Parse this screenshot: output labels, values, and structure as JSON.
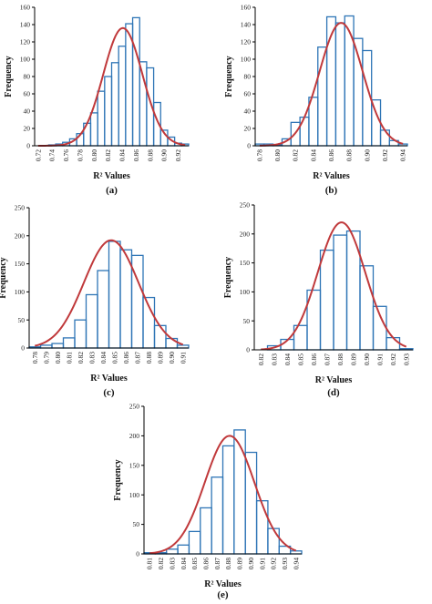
{
  "figure": {
    "panel_labels": [
      "(a)",
      "(b)",
      "(c)",
      "(d)",
      "(e)"
    ]
  },
  "colors": {
    "bar_stroke": "#2e75b6",
    "fit_curve": "#c0393b",
    "axis": "#000000"
  },
  "chart_data": [
    {
      "type": "bar",
      "panel": "(a)",
      "xlabel": "R² Values",
      "ylabel": "Frequency",
      "ylim": [
        0,
        160
      ],
      "yticks": [
        0,
        20,
        40,
        60,
        80,
        100,
        120,
        140,
        160
      ],
      "categories": [
        "0.72",
        "0.73",
        "0.74",
        "0.75",
        "0.76",
        "0.77",
        "0.78",
        "0.79",
        "0.80",
        "0.81",
        "0.82",
        "0.83",
        "0.84",
        "0.85",
        "0.86",
        "0.87",
        "0.88",
        "0.89",
        "0.90",
        "0.91",
        "0.92",
        "0.93"
      ],
      "xtick_labels": [
        "0.72",
        "0.74",
        "0.76",
        "0.78",
        "0.80",
        "0.82",
        "0.84",
        "0.86",
        "0.88",
        "0.90",
        "0.92"
      ],
      "values": [
        0,
        0,
        1,
        2,
        4,
        8,
        14,
        26,
        38,
        63,
        80,
        96,
        115,
        141,
        148,
        97,
        90,
        50,
        18,
        10,
        3,
        2
      ],
      "fit_curve": {
        "mean": 0.841,
        "sd": 0.028,
        "peak": 136
      },
      "grid": false
    },
    {
      "type": "bar",
      "panel": "(b)",
      "xlabel": "R² Values",
      "ylabel": "Frequency",
      "ylim": [
        0,
        160
      ],
      "yticks": [
        0,
        20,
        40,
        60,
        80,
        100,
        120,
        140,
        160
      ],
      "categories": [
        "0.78",
        "0.79",
        "0.80",
        "0.81",
        "0.82",
        "0.83",
        "0.84",
        "0.85",
        "0.86",
        "0.87",
        "0.88",
        "0.89",
        "0.90",
        "0.91",
        "0.92",
        "0.93",
        "0.94"
      ],
      "xtick_labels": [
        "0.78",
        "0.80",
        "0.82",
        "0.84",
        "0.86",
        "0.88",
        "0.90",
        "0.92",
        "0.94"
      ],
      "values": [
        2,
        2,
        1,
        8,
        27,
        33,
        56,
        114,
        149,
        142,
        150,
        124,
        110,
        53,
        18,
        6,
        2
      ],
      "fit_curve": {
        "mean": 0.871,
        "sd": 0.024,
        "peak": 142
      },
      "grid": false
    },
    {
      "type": "bar",
      "panel": "(c)",
      "xlabel": "R² Values",
      "ylabel": "Frequency",
      "ylim": [
        0,
        250
      ],
      "yticks": [
        0,
        50,
        100,
        150,
        200,
        250
      ],
      "categories": [
        "0.78",
        "0.79",
        "0.80",
        "0.81",
        "0.82",
        "0.83",
        "0.84",
        "0.85",
        "0.86",
        "0.87",
        "0.88",
        "0.89",
        "0.90",
        "0.91"
      ],
      "xtick_labels": [
        "0.78",
        "0.79",
        "0.80",
        "0.81",
        "0.82",
        "0.83",
        "0.84",
        "0.85",
        "0.86",
        "0.87",
        "0.88",
        "0.89",
        "0.90",
        "0.91"
      ],
      "values": [
        2,
        5,
        8,
        18,
        50,
        95,
        138,
        190,
        175,
        165,
        90,
        40,
        17,
        5
      ],
      "fit_curve": {
        "mean": 0.847,
        "sd": 0.024,
        "peak": 192
      },
      "grid": false
    },
    {
      "type": "bar",
      "panel": "(d)",
      "xlabel": "R² Values",
      "ylabel": "Frequency",
      "ylim": [
        0,
        250
      ],
      "yticks": [
        0,
        50,
        100,
        150,
        200,
        250
      ],
      "categories": [
        "0.82",
        "0.83",
        "0.84",
        "0.85",
        "0.86",
        "0.87",
        "0.88",
        "0.89",
        "0.90",
        "0.91",
        "0.92",
        "0.93"
      ],
      "xtick_labels": [
        "0.82",
        "0.83",
        "0.84",
        "0.85",
        "0.86",
        "0.87",
        "0.88",
        "0.89",
        "0.90",
        "0.91",
        "0.92",
        "0.93"
      ],
      "values": [
        0,
        7,
        18,
        42,
        103,
        172,
        198,
        205,
        145,
        75,
        21,
        2
      ],
      "fit_curve": {
        "mean": 0.881,
        "sd": 0.018,
        "peak": 220
      },
      "grid": false
    },
    {
      "type": "bar",
      "panel": "(e)",
      "xlabel": "R² Values",
      "ylabel": "Frequency",
      "ylim": [
        0,
        250
      ],
      "yticks": [
        0,
        50,
        100,
        150,
        200,
        250
      ],
      "categories": [
        "0.81",
        "0.82",
        "0.83",
        "0.84",
        "0.85",
        "0.86",
        "0.87",
        "0.88",
        "0.89",
        "0.90",
        "0.91",
        "0.92",
        "0.93",
        "0.94"
      ],
      "xtick_labels": [
        "0.81",
        "0.82",
        "0.83",
        "0.84",
        "0.85",
        "0.86",
        "0.87",
        "0.88",
        "0.89",
        "0.90",
        "0.91",
        "0.92",
        "0.93",
        "0.94"
      ],
      "values": [
        2,
        2,
        8,
        15,
        38,
        78,
        130,
        183,
        210,
        172,
        90,
        43,
        13,
        5
      ],
      "fit_curve": {
        "mean": 0.881,
        "sd": 0.022,
        "peak": 200
      },
      "grid": false
    }
  ]
}
